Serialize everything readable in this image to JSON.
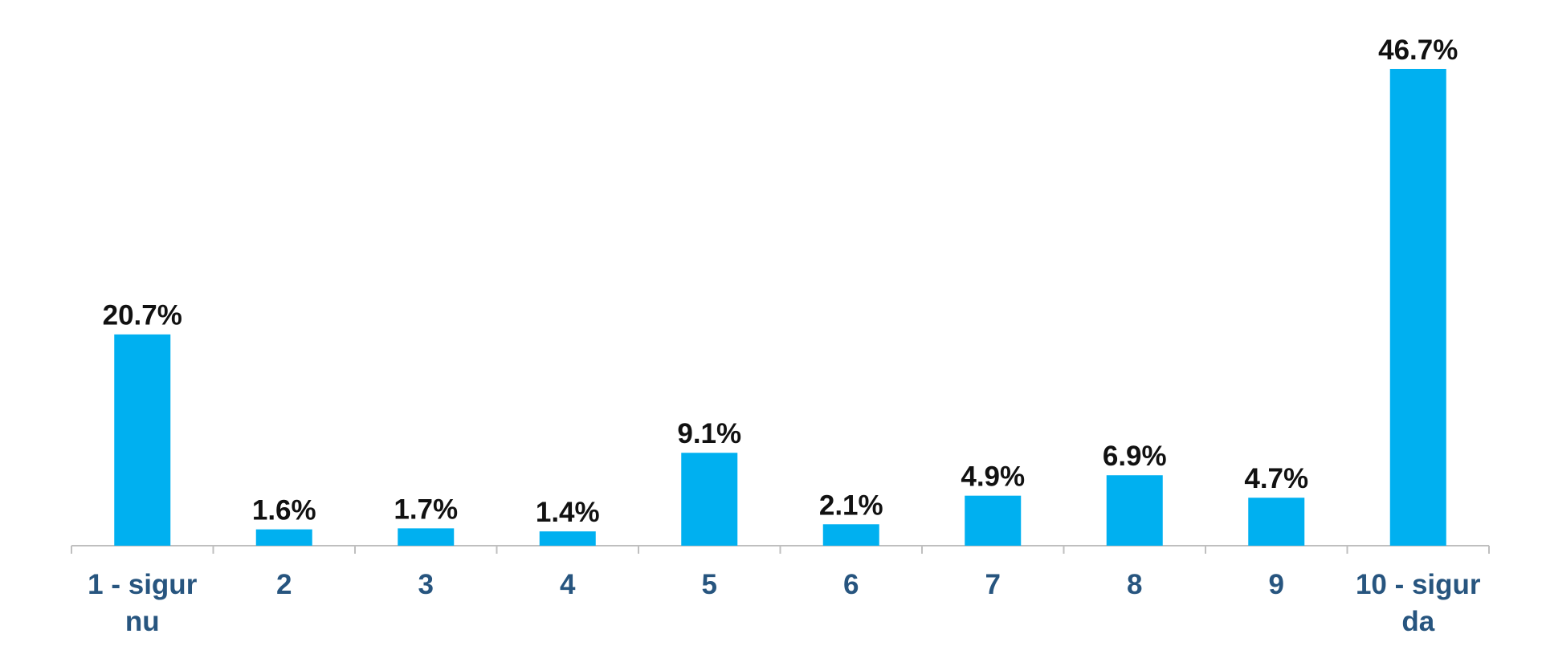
{
  "chart_data": {
    "type": "bar",
    "categories": [
      "1 - sigur nu",
      "2",
      "3",
      "4",
      "5",
      "6",
      "7",
      "8",
      "9",
      "10 - sigur da"
    ],
    "values": [
      20.7,
      1.6,
      1.7,
      1.4,
      9.1,
      2.1,
      4.9,
      6.9,
      4.7,
      46.7
    ],
    "value_labels": [
      "20.7%",
      "1.6%",
      "1.7%",
      "1.4%",
      "9.1%",
      "2.1%",
      "4.9%",
      "6.9%",
      "4.7%",
      "46.7%"
    ],
    "color": "#00b0f0"
  }
}
